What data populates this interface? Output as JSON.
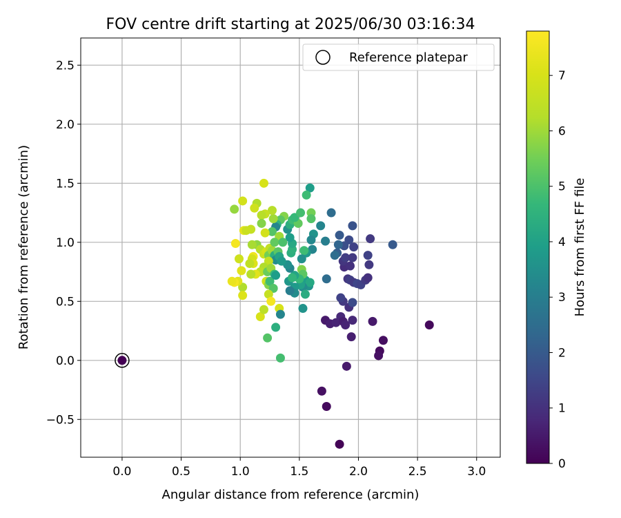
{
  "chart_data": {
    "type": "scatter",
    "title": "FOV centre drift starting at 2025/06/30 03:16:34",
    "xlabel": "Angular distance from reference (arcmin)",
    "ylabel": "Rotation from reference (arcmin)",
    "xlim": [
      -0.35,
      3.2
    ],
    "ylim": [
      -0.82,
      2.73
    ],
    "xticks": [
      0.0,
      0.5,
      1.0,
      1.5,
      2.0,
      2.5,
      3.0
    ],
    "xtick_labels": [
      "0.0",
      "0.5",
      "1.0",
      "1.5",
      "2.0",
      "2.5",
      "3.0"
    ],
    "yticks": [
      -0.5,
      0.0,
      0.5,
      1.0,
      1.5,
      2.0,
      2.5
    ],
    "ytick_labels": [
      "−0.5",
      "0.0",
      "0.5",
      "1.0",
      "1.5",
      "2.0",
      "2.5"
    ],
    "grid": true,
    "legend": {
      "position": "upper-right",
      "entries": [
        "Reference platepar"
      ]
    },
    "colorbar": {
      "label": "Hours from first FF file",
      "colormap": "viridis",
      "range": [
        0,
        7.8
      ],
      "ticks": [
        0,
        1,
        2,
        3,
        4,
        5,
        6,
        7
      ],
      "tick_labels": [
        "0",
        "1",
        "2",
        "3",
        "4",
        "5",
        "6",
        "7"
      ]
    },
    "reference_point": {
      "x": 0.0,
      "y": 0.0
    },
    "series": [
      {
        "columns": [
          "x",
          "y",
          "hours"
        ],
        "points": [
          [
            0.0,
            0.0,
            0.0
          ],
          [
            1.84,
            -0.71,
            0.05
          ],
          [
            1.73,
            -0.39,
            0.2
          ],
          [
            1.69,
            -0.26,
            0.3
          ],
          [
            2.6,
            0.3,
            0.15
          ],
          [
            2.21,
            0.17,
            0.25
          ],
          [
            2.18,
            0.08,
            0.2
          ],
          [
            2.17,
            0.04,
            0.3
          ],
          [
            1.9,
            -0.05,
            0.5
          ],
          [
            1.72,
            0.34,
            0.5
          ],
          [
            1.76,
            0.31,
            0.6
          ],
          [
            1.81,
            0.32,
            0.7
          ],
          [
            1.85,
            0.37,
            0.8
          ],
          [
            1.87,
            0.33,
            0.6
          ],
          [
            1.89,
            0.3,
            0.7
          ],
          [
            1.95,
            0.34,
            0.8
          ],
          [
            2.12,
            0.33,
            0.5
          ],
          [
            1.94,
            0.2,
            0.6
          ],
          [
            1.92,
            0.45,
            1.0
          ],
          [
            1.87,
            0.5,
            1.2
          ],
          [
            1.85,
            0.53,
            1.4
          ],
          [
            1.95,
            0.49,
            1.6
          ],
          [
            1.91,
            0.69,
            1.1
          ],
          [
            1.93,
            0.68,
            1.3
          ],
          [
            1.96,
            0.66,
            1.2
          ],
          [
            1.99,
            0.65,
            1.5
          ],
          [
            2.02,
            0.64,
            1.4
          ],
          [
            2.06,
            0.68,
            1.2
          ],
          [
            2.08,
            0.7,
            1.0
          ],
          [
            2.09,
            0.81,
            1.2
          ],
          [
            2.08,
            0.89,
            1.4
          ],
          [
            2.1,
            1.03,
            1.2
          ],
          [
            2.29,
            0.98,
            2.0
          ],
          [
            1.95,
            1.14,
            1.8
          ],
          [
            1.88,
            0.79,
            0.9
          ],
          [
            1.87,
            0.84,
            1.1
          ],
          [
            1.89,
            0.87,
            1.3
          ],
          [
            1.93,
            0.8,
            1.0
          ],
          [
            1.95,
            0.87,
            1.2
          ],
          [
            1.96,
            0.96,
            1.4
          ],
          [
            1.92,
            1.02,
            1.6
          ],
          [
            1.88,
            0.97,
            1.7
          ],
          [
            1.84,
            1.06,
            2.0
          ],
          [
            1.83,
            0.98,
            2.3
          ],
          [
            1.82,
            0.91,
            2.1
          ],
          [
            1.8,
            0.89,
            2.5
          ],
          [
            1.73,
            0.69,
            2.5
          ],
          [
            1.77,
            1.25,
            2.5
          ],
          [
            1.72,
            1.01,
            3.0
          ],
          [
            1.68,
            1.14,
            3.2
          ],
          [
            1.61,
            0.94,
            3.2
          ],
          [
            1.62,
            1.07,
            3.6
          ],
          [
            1.6,
            1.02,
            3.3
          ],
          [
            1.59,
            1.46,
            3.9
          ],
          [
            1.56,
            1.4,
            4.8
          ],
          [
            1.6,
            1.25,
            5.5
          ],
          [
            1.6,
            1.2,
            5.1
          ],
          [
            1.56,
            0.91,
            3.8
          ],
          [
            1.54,
            0.93,
            4.8
          ],
          [
            1.52,
            0.86,
            3.5
          ],
          [
            1.55,
            0.68,
            3.9
          ],
          [
            1.58,
            0.63,
            3.6
          ],
          [
            1.59,
            0.66,
            4.2
          ],
          [
            1.53,
            0.62,
            3.4
          ],
          [
            1.51,
            0.64,
            4.0
          ],
          [
            1.55,
            0.56,
            4.3
          ],
          [
            1.53,
            0.44,
            3.6
          ],
          [
            1.52,
            0.77,
            5.7
          ],
          [
            1.53,
            0.73,
            5.2
          ],
          [
            1.5,
            0.69,
            4.7
          ],
          [
            1.46,
            0.72,
            4.1
          ],
          [
            1.46,
            0.62,
            3.8
          ],
          [
            1.46,
            0.57,
            3.4
          ],
          [
            1.42,
            0.59,
            3.0
          ],
          [
            1.41,
            0.67,
            3.7
          ],
          [
            1.44,
            0.7,
            4.6
          ],
          [
            1.42,
            0.78,
            3.2
          ],
          [
            1.4,
            0.81,
            3.5
          ],
          [
            1.43,
            0.91,
            4.4
          ],
          [
            1.44,
            0.94,
            4.5
          ],
          [
            1.44,
            0.99,
            4.2
          ],
          [
            1.42,
            1.04,
            3.9
          ],
          [
            1.4,
            1.11,
            3.6
          ],
          [
            1.42,
            1.15,
            4.4
          ],
          [
            1.44,
            1.19,
            4.8
          ],
          [
            1.49,
            1.16,
            5.3
          ],
          [
            1.46,
            1.21,
            4.7
          ],
          [
            1.51,
            1.25,
            4.9
          ],
          [
            1.37,
            1.22,
            5.7
          ],
          [
            1.34,
            1.19,
            5.2
          ],
          [
            1.31,
            1.15,
            4.5
          ],
          [
            1.3,
            1.13,
            3.2
          ],
          [
            1.27,
            1.09,
            5.1
          ],
          [
            1.28,
            1.2,
            6.0
          ],
          [
            1.27,
            1.27,
            6.3
          ],
          [
            1.21,
            1.24,
            6.6
          ],
          [
            1.18,
            1.23,
            6.3
          ],
          [
            1.2,
            1.5,
            7.0
          ],
          [
            1.14,
            1.33,
            6.2
          ],
          [
            1.12,
            1.29,
            6.8
          ],
          [
            1.09,
            1.11,
            6.6
          ],
          [
            1.02,
            1.35,
            6.9
          ],
          [
            0.95,
            1.28,
            5.9
          ],
          [
            1.03,
            1.1,
            7.3
          ],
          [
            1.05,
            1.1,
            6.7
          ],
          [
            1.18,
            1.16,
            5.7
          ],
          [
            1.21,
            1.08,
            6.9
          ],
          [
            1.14,
            0.98,
            5.8
          ],
          [
            1.1,
            0.98,
            6.1
          ],
          [
            1.17,
            0.94,
            6.3
          ],
          [
            1.2,
            0.9,
            6.7
          ],
          [
            1.22,
            0.92,
            7.0
          ],
          [
            1.25,
            0.95,
            6.5
          ],
          [
            1.24,
            0.89,
            5.5
          ],
          [
            1.27,
            0.93,
            6.0
          ],
          [
            1.29,
            0.89,
            4.4
          ],
          [
            1.32,
            0.92,
            5.2
          ],
          [
            1.3,
            0.85,
            3.4
          ],
          [
            1.33,
            0.88,
            4.1
          ],
          [
            1.35,
            0.84,
            3.8
          ],
          [
            1.33,
            1.05,
            6.0
          ],
          [
            1.29,
            1.0,
            5.3
          ],
          [
            1.36,
            1.0,
            5.0
          ],
          [
            1.24,
            0.84,
            6.6
          ],
          [
            1.2,
            0.79,
            6.2
          ],
          [
            1.17,
            0.75,
            6.4
          ],
          [
            1.22,
            0.67,
            6.8
          ],
          [
            1.24,
            0.64,
            5.7
          ],
          [
            1.25,
            0.67,
            4.8
          ],
          [
            1.23,
            0.75,
            5.4
          ],
          [
            1.26,
            0.78,
            6.0
          ],
          [
            1.29,
            0.73,
            4.7
          ],
          [
            1.3,
            0.72,
            3.9
          ],
          [
            1.28,
            0.61,
            5.1
          ],
          [
            1.24,
            0.56,
            6.6
          ],
          [
            1.26,
            0.5,
            7.6
          ],
          [
            1.33,
            0.44,
            7.0
          ],
          [
            1.34,
            0.39,
            3.2
          ],
          [
            1.3,
            0.28,
            4.4
          ],
          [
            1.23,
            0.19,
            5.1
          ],
          [
            1.34,
            0.02,
            4.9
          ],
          [
            1.17,
            0.37,
            7.0
          ],
          [
            1.2,
            0.43,
            6.4
          ],
          [
            1.13,
            0.73,
            7.2
          ],
          [
            1.11,
            0.88,
            7.5
          ],
          [
            1.1,
            0.86,
            6.9
          ],
          [
            1.11,
            0.82,
            7.1
          ],
          [
            1.08,
            0.82,
            6.5
          ],
          [
            1.01,
            0.76,
            7.2
          ],
          [
            0.99,
            0.86,
            6.8
          ],
          [
            0.96,
            0.99,
            7.6
          ],
          [
            1.02,
            0.62,
            6.2
          ],
          [
            1.02,
            0.55,
            7.1
          ],
          [
            0.98,
            0.67,
            7.2
          ],
          [
            0.95,
            0.66,
            7.6
          ],
          [
            0.93,
            0.67,
            7.4
          ],
          [
            1.09,
            0.73,
            6.3
          ]
        ]
      }
    ]
  }
}
